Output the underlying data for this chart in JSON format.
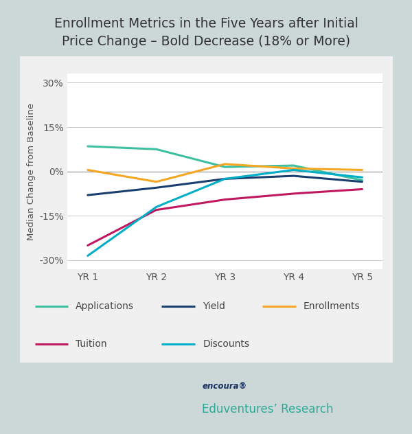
{
  "title": "Enrollment Metrics in the Five Years after Initial\nPrice Change – Bold Decrease (18% or More)",
  "ylabel": "Median Change from Baseline",
  "x_labels": [
    "YR 1",
    "YR 2",
    "YR 3",
    "YR 4",
    "YR 5"
  ],
  "x_values": [
    1,
    2,
    3,
    4,
    5
  ],
  "series": {
    "Applications": {
      "values": [
        8.5,
        7.5,
        1.5,
        2.0,
        -3.0
      ],
      "color": "#3dbfa0",
      "linewidth": 2.2
    },
    "Yield": {
      "values": [
        -8.0,
        -5.5,
        -2.5,
        -1.5,
        -3.5
      ],
      "color": "#1a3f6f",
      "linewidth": 2.2
    },
    "Enrollments": {
      "values": [
        0.5,
        -3.5,
        2.5,
        1.0,
        0.5
      ],
      "color": "#f5a623",
      "linewidth": 2.2
    },
    "Tuition": {
      "values": [
        -25.0,
        -13.0,
        -9.5,
        -7.5,
        -6.0
      ],
      "color": "#c0175e",
      "linewidth": 2.2
    },
    "Discounts": {
      "values": [
        -28.5,
        -12.0,
        -2.5,
        0.5,
        -2.0
      ],
      "color": "#00aec7",
      "linewidth": 2.2
    }
  },
  "ylim": [
    -33,
    33
  ],
  "yticks": [
    -30,
    -15,
    0,
    15,
    30
  ],
  "ytick_labels": [
    "-30%",
    "-15%",
    "0%",
    "15%",
    "30%"
  ],
  "grid_color": "#c8c8c8",
  "chart_bg": "#ffffff",
  "panel_bg": "#f0f0f0",
  "outer_bg": "#ccd8d8",
  "title_fontsize": 13.5,
  "tick_fontsize": 10,
  "ylabel_fontsize": 9.5,
  "legend_fontsize": 10,
  "zero_line_color": "#999999",
  "logo_top": "encoura®",
  "logo_bottom": "Eduventures’ Research",
  "logo_top_color": "#1a3263",
  "logo_bottom_color": "#2aaa96",
  "series_order": [
    "Applications",
    "Yield",
    "Enrollments",
    "Tuition",
    "Discounts"
  ],
  "legend_row1": [
    "Applications",
    "Yield",
    "Enrollments"
  ],
  "legend_row2": [
    "Tuition",
    "Discounts"
  ]
}
